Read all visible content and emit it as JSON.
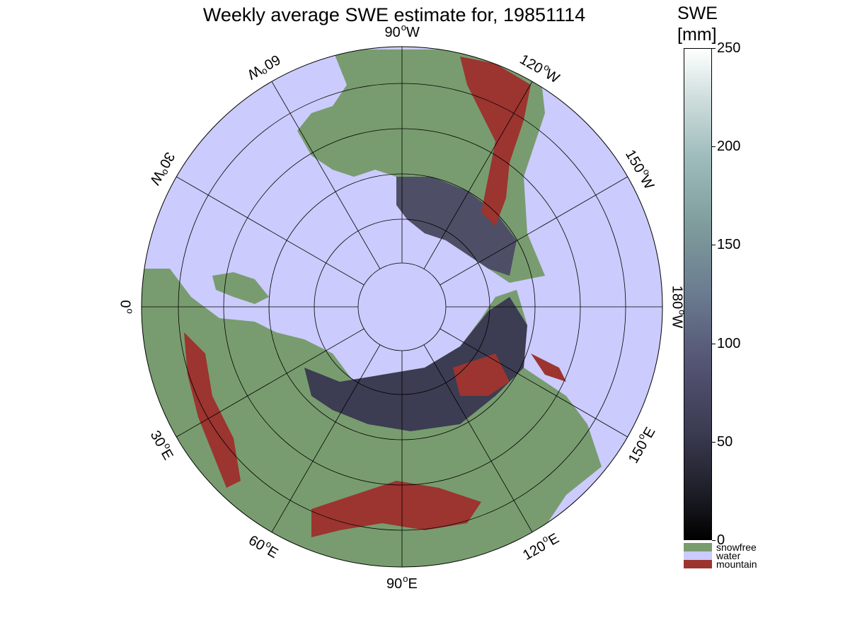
{
  "title": "Weekly average SWE estimate for, 19851114",
  "colors": {
    "water": "#cbcbfd",
    "snowfree": "#789c6f",
    "mountain": "#9c3430",
    "snow_low": "#2c2c3c",
    "snow_mid": "#5c5c7c"
  },
  "longitude_labels": [
    {
      "value": "90",
      "hemi": "W"
    },
    {
      "value": "120",
      "hemi": "W"
    },
    {
      "value": "150",
      "hemi": "W"
    },
    {
      "value": "180",
      "hemi": "W"
    },
    {
      "value": "150",
      "hemi": "E"
    },
    {
      "value": "120",
      "hemi": "E"
    },
    {
      "value": "90",
      "hemi": "E"
    },
    {
      "value": "60",
      "hemi": "E"
    },
    {
      "value": "30",
      "hemi": "E"
    },
    {
      "value": "0",
      "hemi": ""
    },
    {
      "value": "30",
      "hemi": "W"
    },
    {
      "value": "60",
      "hemi": "W"
    }
  ],
  "colorbar": {
    "title_line1": "SWE",
    "title_line2": "[mm]",
    "range": [
      0,
      250
    ],
    "ticks": [
      "0",
      "50",
      "100",
      "150",
      "200",
      "250"
    ]
  },
  "legend": [
    {
      "label": "snowfree",
      "color": "#789c6f"
    },
    {
      "label": "water",
      "color": "#cbcbfd"
    },
    {
      "label": "mountain",
      "color": "#9c3430"
    }
  ]
}
